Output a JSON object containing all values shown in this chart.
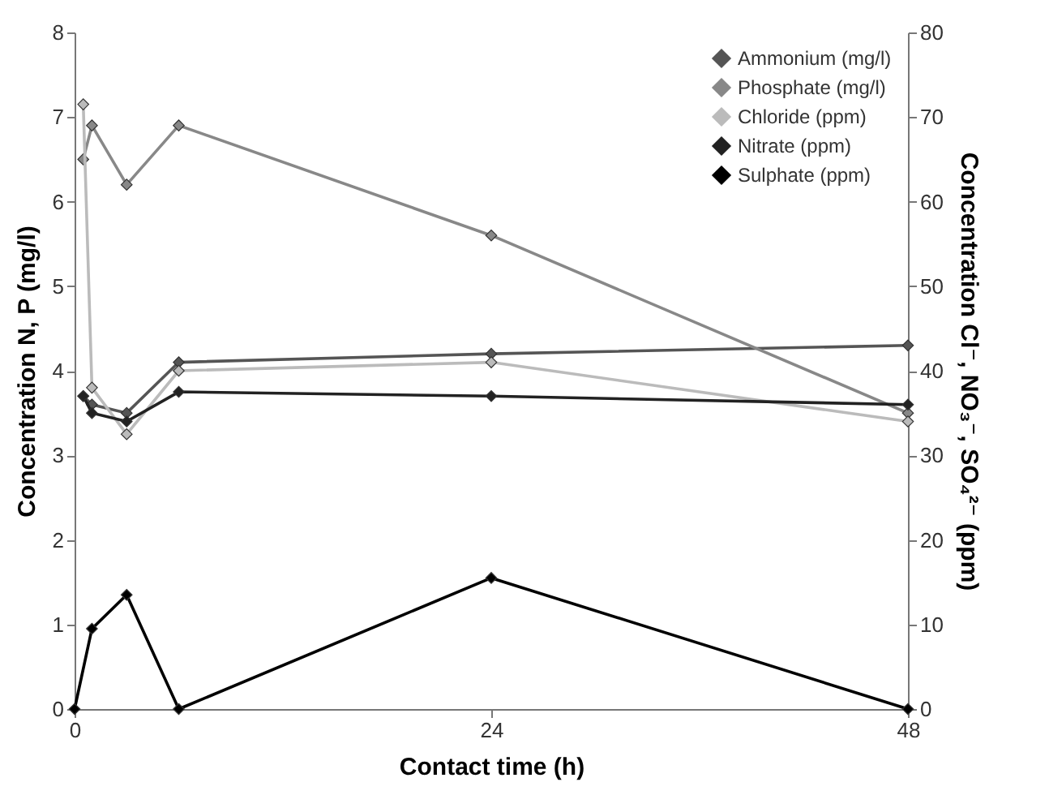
{
  "chart_data": {
    "type": "line",
    "xlabel": "Contact time (h)",
    "ylabel": "Concentration N, P (mg/l)",
    "y2label": "Concentration Cl⁻, NO₃⁻, SO₄²⁻ (ppm)",
    "x": [
      0.5,
      1,
      3,
      6,
      24,
      48
    ],
    "xlim": [
      0,
      48
    ],
    "xticks": [
      0,
      24,
      48
    ],
    "ylim": [
      0,
      8
    ],
    "yticks": [
      0,
      1,
      2,
      3,
      4,
      5,
      6,
      7,
      8
    ],
    "y2lim": [
      0,
      80
    ],
    "y2ticks": [
      0,
      10,
      20,
      30,
      40,
      50,
      60,
      70,
      80
    ],
    "series": [
      {
        "name": "Ammonium (mg/l)",
        "color": "#555555",
        "values": [
          3.7,
          3.6,
          3.5,
          4.1,
          4.2,
          4.3
        ]
      },
      {
        "name": "Phosphate (mg/l)",
        "color": "#888888",
        "values": [
          6.5,
          6.9,
          6.2,
          6.9,
          5.6,
          3.5
        ]
      },
      {
        "name": "Chloride (ppm)",
        "color": "#bbbbbb",
        "axis": "y2",
        "values": [
          71.5,
          38,
          32.5,
          40,
          41,
          34
        ]
      },
      {
        "name": "Nitrate (ppm)",
        "color": "#222222",
        "axis": "y2",
        "values": [
          37,
          35,
          34,
          37.5,
          37,
          36
        ]
      },
      {
        "name": "Sulphate (ppm)",
        "color": "#000000",
        "axis": "y2",
        "x": [
          0,
          1,
          3,
          6,
          24,
          48
        ],
        "values": [
          0,
          9.5,
          13.5,
          0,
          15.5,
          0
        ]
      }
    ],
    "marker": "diamond",
    "line_style": "solid",
    "grid": false,
    "legend": "top right"
  }
}
